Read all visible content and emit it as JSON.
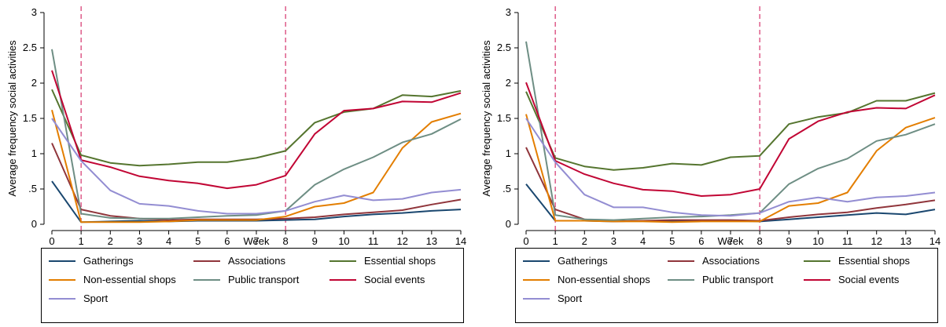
{
  "chart_data": [
    {
      "type": "line",
      "ylabel": "Average frequency social activities",
      "xlabel": "Week",
      "x": [
        0,
        1,
        2,
        3,
        4,
        5,
        6,
        7,
        8,
        9,
        10,
        11,
        12,
        13,
        14
      ],
      "xlim": [
        0,
        14
      ],
      "ylim": [
        0,
        3
      ],
      "yticks": [
        0,
        0.5,
        1,
        1.5,
        2,
        2.5,
        3
      ],
      "ytick_labels": [
        "0",
        ".5",
        "1",
        "1.5",
        "2",
        "2.5",
        "3"
      ],
      "xtick_labels": [
        "0",
        "1",
        "2",
        "3",
        "4",
        "5",
        "6",
        "7",
        "8",
        "9",
        "10",
        "11",
        "12",
        "13",
        "14"
      ],
      "vlines": [
        1,
        8
      ],
      "grid": false,
      "series": [
        {
          "name": "Gatherings",
          "color": "#1a476f",
          "values": [
            0.61,
            0.03,
            0.04,
            0.05,
            0.04,
            0.05,
            0.05,
            0.05,
            0.06,
            0.07,
            0.11,
            0.14,
            0.16,
            0.19,
            0.21
          ]
        },
        {
          "name": "Associations",
          "color": "#90353b",
          "values": [
            1.15,
            0.21,
            0.12,
            0.08,
            0.06,
            0.07,
            0.07,
            0.07,
            0.08,
            0.1,
            0.14,
            0.17,
            0.2,
            0.28,
            0.35
          ]
        },
        {
          "name": "Essential shops",
          "color": "#55752f",
          "values": [
            1.91,
            0.98,
            0.87,
            0.83,
            0.85,
            0.88,
            0.88,
            0.94,
            1.04,
            1.44,
            1.59,
            1.64,
            1.83,
            1.81,
            1.89
          ]
        },
        {
          "name": "Non-essential shops",
          "color": "#e37e00",
          "values": [
            1.62,
            0.03,
            0.03,
            0.03,
            0.04,
            0.06,
            0.06,
            0.06,
            0.11,
            0.25,
            0.3,
            0.45,
            1.08,
            1.45,
            1.57
          ]
        },
        {
          "name": "Public transport",
          "color": "#6e8e84",
          "values": [
            2.48,
            0.15,
            0.09,
            0.08,
            0.08,
            0.1,
            0.12,
            0.13,
            0.19,
            0.56,
            0.78,
            0.95,
            1.16,
            1.28,
            1.49
          ]
        },
        {
          "name": "Social events",
          "color": "#c10534",
          "values": [
            2.18,
            0.91,
            0.81,
            0.68,
            0.62,
            0.58,
            0.51,
            0.56,
            0.69,
            1.28,
            1.61,
            1.64,
            1.74,
            1.73,
            1.86
          ]
        },
        {
          "name": "Sport",
          "color": "#938dd2",
          "values": [
            1.5,
            0.9,
            0.48,
            0.29,
            0.26,
            0.19,
            0.15,
            0.15,
            0.19,
            0.32,
            0.41,
            0.34,
            0.36,
            0.45,
            0.49
          ]
        }
      ]
    },
    {
      "type": "line",
      "ylabel": "Average frequency social activities",
      "xlabel": "Week",
      "x": [
        0,
        1,
        2,
        3,
        4,
        5,
        6,
        7,
        8,
        9,
        10,
        11,
        12,
        13,
        14
      ],
      "xlim": [
        0,
        14
      ],
      "ylim": [
        0,
        3
      ],
      "yticks": [
        0,
        0.5,
        1,
        1.5,
        2,
        2.5,
        3
      ],
      "ytick_labels": [
        "0",
        ".5",
        "1",
        "1.5",
        "2",
        "2.5",
        "3"
      ],
      "xtick_labels": [
        "0",
        "1",
        "2",
        "3",
        "4",
        "5",
        "6",
        "7",
        "8",
        "9",
        "10",
        "11",
        "12",
        "13",
        "14"
      ],
      "vlines": [
        1,
        8
      ],
      "grid": false,
      "series": [
        {
          "name": "Gatherings",
          "color": "#1a476f",
          "values": [
            0.57,
            0.05,
            0.05,
            0.04,
            0.05,
            0.04,
            0.05,
            0.05,
            0.04,
            0.07,
            0.1,
            0.13,
            0.16,
            0.14,
            0.21
          ]
        },
        {
          "name": "Associations",
          "color": "#90353b",
          "values": [
            1.09,
            0.21,
            0.07,
            0.04,
            0.05,
            0.06,
            0.06,
            0.06,
            0.05,
            0.1,
            0.14,
            0.17,
            0.23,
            0.28,
            0.34
          ]
        },
        {
          "name": "Essential shops",
          "color": "#55752f",
          "values": [
            1.88,
            0.94,
            0.82,
            0.77,
            0.8,
            0.86,
            0.84,
            0.95,
            0.97,
            1.42,
            1.52,
            1.58,
            1.75,
            1.75,
            1.86
          ]
        },
        {
          "name": "Non-essential shops",
          "color": "#e37e00",
          "values": [
            1.56,
            0.05,
            0.05,
            0.04,
            0.04,
            0.03,
            0.04,
            0.04,
            0.04,
            0.26,
            0.3,
            0.45,
            1.04,
            1.37,
            1.51
          ]
        },
        {
          "name": "Public transport",
          "color": "#6e8e84",
          "values": [
            2.59,
            0.13,
            0.07,
            0.06,
            0.08,
            0.1,
            0.11,
            0.13,
            0.16,
            0.57,
            0.79,
            0.93,
            1.18,
            1.27,
            1.42
          ]
        },
        {
          "name": "Social events",
          "color": "#c10534",
          "values": [
            2.01,
            0.9,
            0.71,
            0.58,
            0.49,
            0.47,
            0.4,
            0.42,
            0.5,
            1.21,
            1.46,
            1.59,
            1.65,
            1.64,
            1.83
          ]
        },
        {
          "name": "Sport",
          "color": "#938dd2",
          "values": [
            1.5,
            0.88,
            0.42,
            0.24,
            0.24,
            0.17,
            0.13,
            0.12,
            0.16,
            0.32,
            0.38,
            0.32,
            0.38,
            0.4,
            0.45
          ]
        }
      ]
    }
  ]
}
